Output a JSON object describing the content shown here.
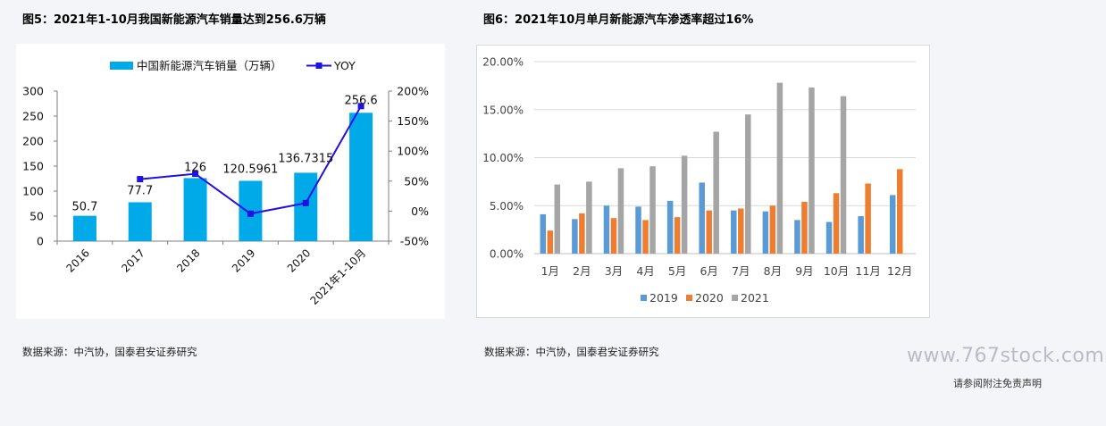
{
  "page": {
    "source_left": "数据来源：中汽协，国泰君安证券研究",
    "source_right": "数据来源：中汽协，国泰君安证券研究",
    "watermark": "www.767stock.com",
    "disclaimer": "请参阅附注免责声明"
  },
  "chart_data": [
    {
      "type": "bar",
      "title": "图5：2021年1-10月我国新能源汽车销量达到256.6万辆",
      "categories": [
        "2016",
        "2017",
        "2018",
        "2019",
        "2020",
        "2021年1-10月"
      ],
      "series": [
        {
          "name": "中国新能源汽车销量（万辆）",
          "type": "bar",
          "axis": "left",
          "color": "#00a9e8",
          "values": [
            50.7,
            77.7,
            126,
            120.5961,
            136.7315,
            256.6
          ],
          "labels": [
            "50.7",
            "77.7",
            "126",
            "120.5961",
            "136.7315",
            "256.6"
          ]
        },
        {
          "name": "YOY",
          "type": "line",
          "axis": "right",
          "color": "#1f10e6",
          "values": [
            null,
            53.3,
            62.2,
            -4.3,
            13.4,
            175
          ]
        }
      ],
      "y_left": {
        "min": 0,
        "max": 300,
        "ticks": [
          "300",
          "250",
          "200",
          "150",
          "100",
          "50",
          "0"
        ]
      },
      "y_right": {
        "min": -50,
        "max": 200,
        "ticks": [
          "200%",
          "150%",
          "100%",
          "50%",
          "0%",
          "-50%"
        ]
      },
      "legend_position": "top",
      "grid": false
    },
    {
      "type": "bar",
      "title": "图6：2021年10月单月新能源汽车渗透率超过16%",
      "categories": [
        "1月",
        "2月",
        "3月",
        "4月",
        "5月",
        "6月",
        "7月",
        "8月",
        "9月",
        "10月",
        "11月",
        "12月"
      ],
      "series": [
        {
          "name": "2019",
          "color": "#5b9bd5",
          "values": [
            4.1,
            3.6,
            5.0,
            4.9,
            5.5,
            7.4,
            4.5,
            4.4,
            3.5,
            3.3,
            3.9,
            6.1
          ]
        },
        {
          "name": "2020",
          "color": "#ed7d31",
          "values": [
            2.4,
            4.2,
            3.7,
            3.5,
            3.8,
            4.5,
            4.7,
            5.0,
            5.4,
            6.3,
            7.3,
            8.8
          ]
        },
        {
          "name": "2021",
          "color": "#a5a5a5",
          "values": [
            7.2,
            7.5,
            8.9,
            9.1,
            10.2,
            12.7,
            14.5,
            17.8,
            17.3,
            16.4,
            null,
            null
          ]
        }
      ],
      "ylim": [
        0,
        20
      ],
      "yticks": [
        "20.00%",
        "15.00%",
        "10.00%",
        "5.00%",
        "0.00%"
      ],
      "legend_position": "bottom",
      "grid": true
    }
  ]
}
